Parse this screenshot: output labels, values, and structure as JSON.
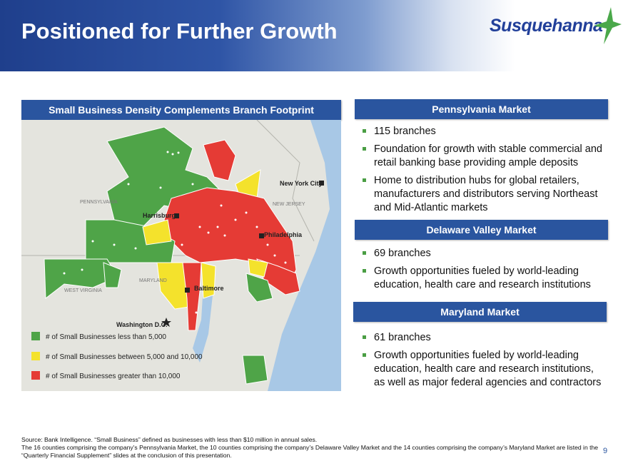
{
  "header": {
    "title": "Positioned for Further Growth",
    "logo": "Susquehanna"
  },
  "map_panel": {
    "heading": "Small Business Density Complements Branch Footprint",
    "labels": [
      "PENNSYLVANIA",
      "New York City",
      "NEW JERSEY",
      "Harrisburg",
      "Philadelphia",
      "MARYLAND",
      "WEST VIRGINIA",
      "Baltimore",
      "Washington D.C."
    ],
    "legend": [
      "# of Small Businesses less than 5,000",
      "# of Small Businesses between 5,000 and 10,000",
      "# of Small Businesses greater than 10,000"
    ]
  },
  "sections": [
    {
      "heading": "Pennsylvania Market",
      "bullets": [
        "115 branches",
        "Foundation for growth with stable commercial and retail banking base providing ample deposits",
        "Home to distribution hubs for global retailers, manufacturers and distributors serving Northeast and Mid-Atlantic markets"
      ]
    },
    {
      "heading": "Delaware Valley Market",
      "bullets": [
        "69 branches",
        "Growth opportunities fueled by world-leading education, health care and research institutions"
      ]
    },
    {
      "heading": "Maryland Market",
      "bullets": [
        "61 branches",
        "Growth opportunities fueled by world-leading education, health care and research institutions, as well as major federal agencies and contractors"
      ]
    }
  ],
  "footer": {
    "source": "Source: Bank Intelligence.  “Small Business” defined as businesses with less than $10 million in annual sales.",
    "note": "The 16 counties comprising the company’s Pennsylvania Market, the 10 counties comprising the company’s Delaware Valley Market and the 14 counties comprising the company’s Maryland Market are listed in the “Quarterly Financial Supplement” slides at the conclusion of this presentation.",
    "page": "9"
  }
}
